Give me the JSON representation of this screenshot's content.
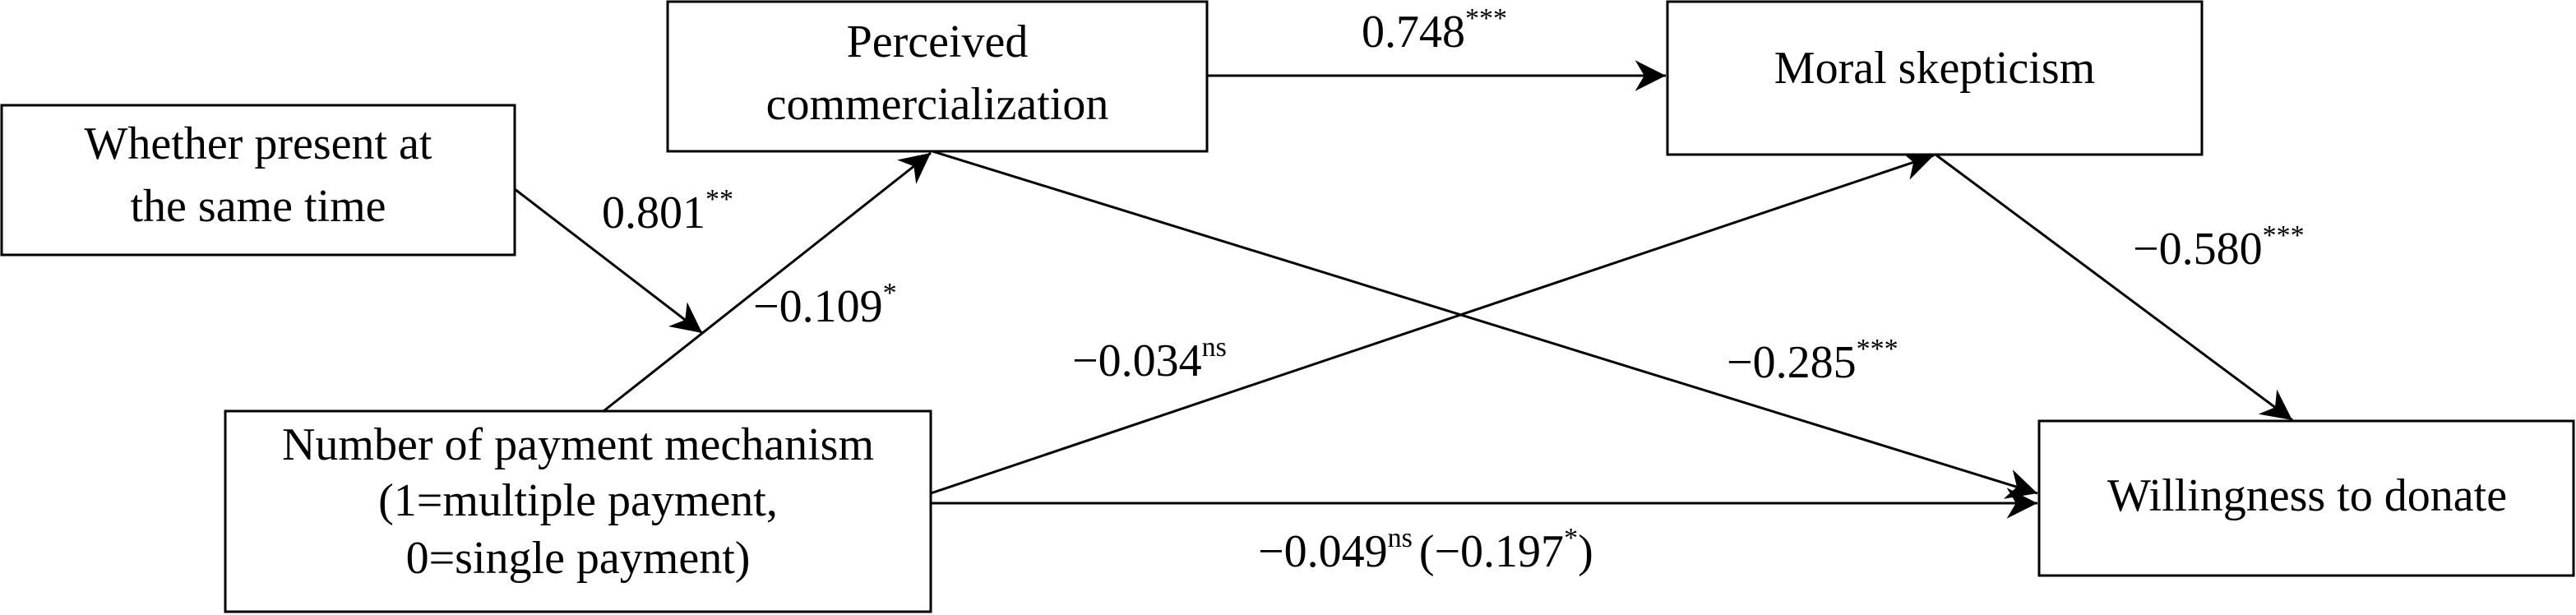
{
  "nodes": [
    {
      "lines": [
        "Whether present at",
        "the same time"
      ]
    },
    {
      "lines": [
        "Perceived",
        "commercialization"
      ]
    },
    {
      "lines": [
        "Moral skepticism"
      ]
    },
    {
      "lines": [
        "Number of payment mechanism",
        "(1=multiple payment,",
        "0=single payment)"
      ]
    },
    {
      "lines": [
        "Willingness to donate"
      ]
    }
  ],
  "edges": [
    {
      "value": "0.748",
      "sig": "***"
    },
    {
      "value": "0.801",
      "sig": "**"
    },
    {
      "value": "−0.109",
      "sig": "*"
    },
    {
      "value": "−0.034",
      "sig": "ns"
    },
    {
      "value": "−0.285",
      "sig": "***"
    },
    {
      "value": "−0.580",
      "sig": "***"
    },
    {
      "value": "−0.049",
      "sig": "ns",
      "total": "(−0.197",
      "total_sig": "*",
      "total_close": ")"
    }
  ]
}
